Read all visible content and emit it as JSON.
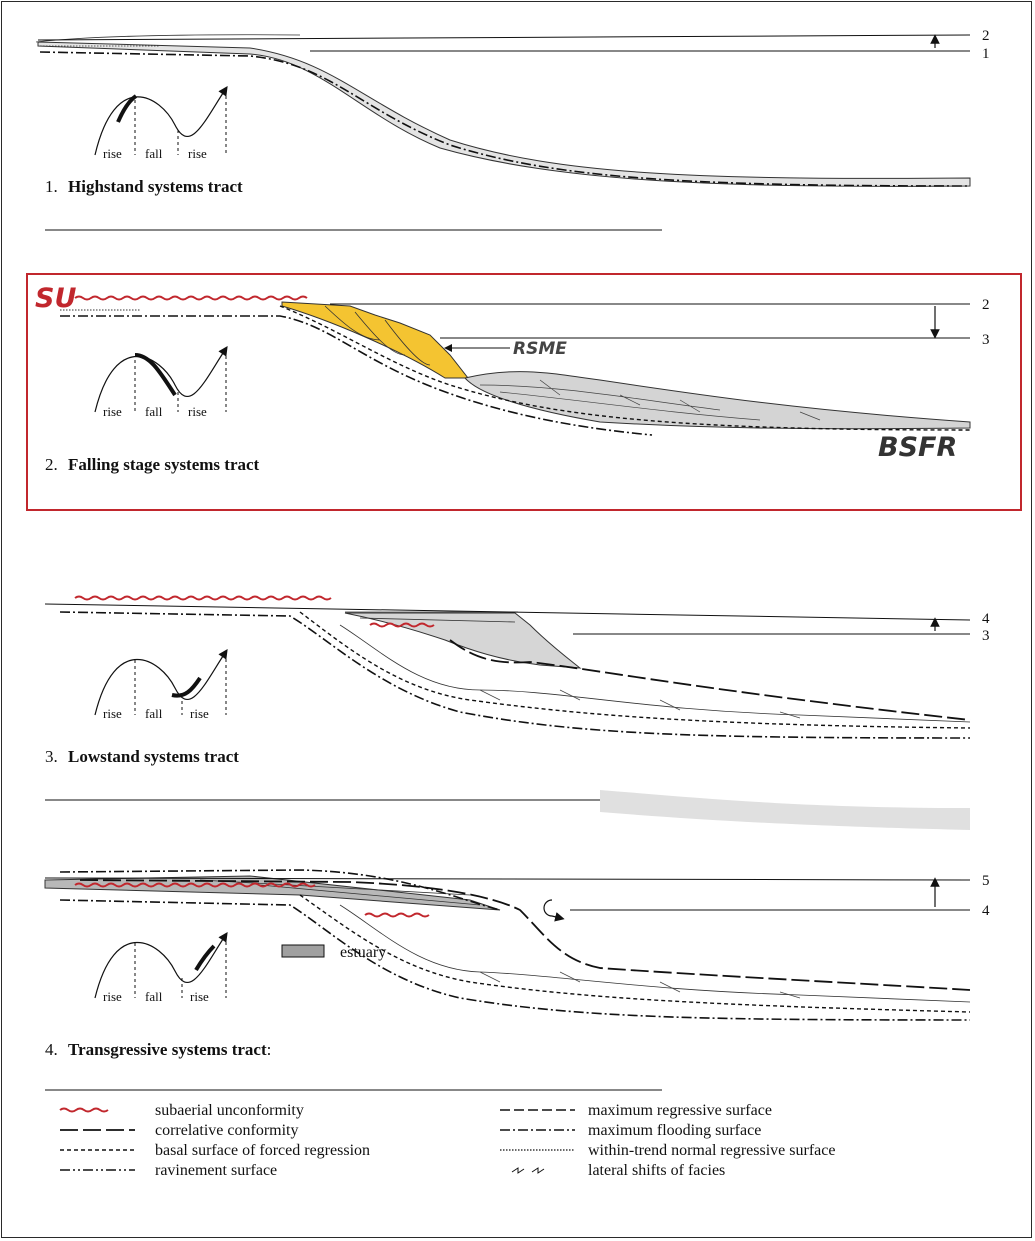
{
  "panels": [
    {
      "number": "1.",
      "title": "Highstand systems tract",
      "levels": [
        "2",
        "1"
      ]
    },
    {
      "number": "2.",
      "title": "Falling stage systems tract",
      "levels": [
        "2",
        "3"
      ]
    },
    {
      "number": "3.",
      "title": "Lowstand systems tract",
      "levels": [
        "4",
        "3"
      ]
    },
    {
      "number": "4.",
      "title": "Transgressive systems tract",
      "title_suffix": ":",
      "levels": [
        "5",
        "4"
      ]
    }
  ],
  "curve_labels": {
    "rise": "rise",
    "fall": "fall"
  },
  "annotations": {
    "su": "SU",
    "rsme": "RSME",
    "bsfr": "BSFR",
    "estuary": "estuary"
  },
  "legend": {
    "left": [
      "subaerial unconformity",
      "correlative conformity",
      "basal surface of forced regression",
      "ravinement surface"
    ],
    "right": [
      "maximum regressive surface",
      "maximum flooding surface",
      "within-trend normal regressive surface",
      "lateral shifts of facies"
    ]
  },
  "colors": {
    "red": "#c1272d",
    "yellow": "#f4c431",
    "fill_gray": "#d9d9d9",
    "estuary_gray": "#a0a0a0"
  }
}
